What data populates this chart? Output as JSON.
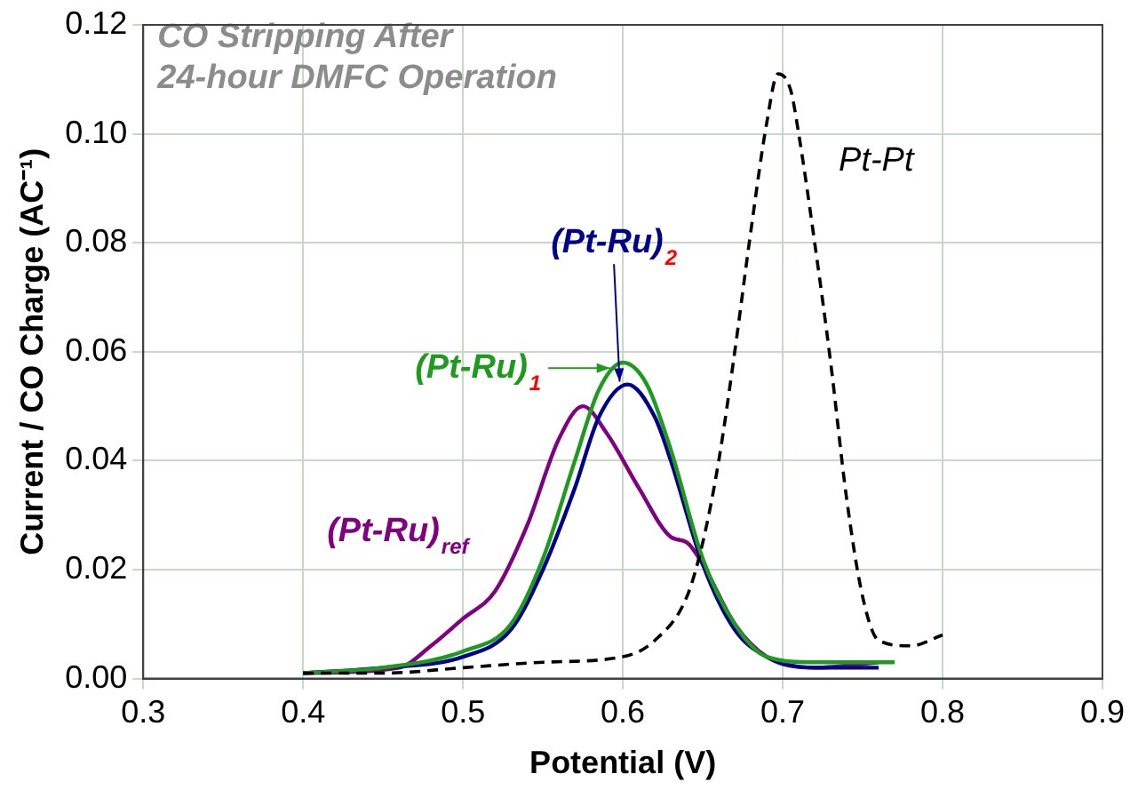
{
  "chart_data": {
    "type": "line",
    "title": "CO Stripping After 24-hour DMFC Operation",
    "xlabel": "Potential (V)",
    "ylabel": "Current / CO Charge (AC⁻¹)",
    "xlim": [
      0.3,
      0.9
    ],
    "xticks": [
      0.3,
      0.4,
      0.5,
      0.6,
      0.7,
      0.8,
      0.9
    ],
    "ylim": [
      0,
      0.12
    ],
    "yticks": [
      {
        "value": 0,
        "label": "0.00"
      },
      {
        "value": 0.02,
        "label": "0.02"
      },
      {
        "value": 0.04,
        "label": "0.04"
      },
      {
        "value": 0.06,
        "label": "0.06"
      },
      {
        "value": 0.08,
        "label": "0.08"
      },
      {
        "value": 0.1,
        "label": "0.10"
      },
      {
        "value": 0.12,
        "label": "0.12"
      }
    ],
    "grid": true,
    "marker": "none",
    "series": [
      {
        "name": "Pt-Pt",
        "color": "#000000",
        "line_style": "dashed",
        "x": [
          0.4,
          0.45,
          0.5,
          0.55,
          0.6,
          0.62,
          0.64,
          0.65,
          0.66,
          0.67,
          0.68,
          0.69,
          0.697,
          0.705,
          0.71,
          0.72,
          0.73,
          0.74,
          0.75,
          0.76,
          0.78,
          0.8
        ],
        "values": [
          0.001,
          0.001,
          0.002,
          0.003,
          0.004,
          0.007,
          0.015,
          0.025,
          0.04,
          0.06,
          0.082,
          0.102,
          0.111,
          0.108,
          0.1,
          0.08,
          0.058,
          0.033,
          0.015,
          0.007,
          0.006,
          0.008
        ]
      },
      {
        "name": "(Pt-Ru)$_{1}$",
        "color": "#1e9a1e",
        "line_style": "solid",
        "x": [
          0.4,
          0.45,
          0.5,
          0.53,
          0.55,
          0.57,
          0.585,
          0.6,
          0.615,
          0.63,
          0.65,
          0.67,
          0.69,
          0.72,
          0.77
        ],
        "values": [
          0.001,
          0.002,
          0.005,
          0.01,
          0.022,
          0.04,
          0.053,
          0.058,
          0.054,
          0.042,
          0.022,
          0.01,
          0.004,
          0.003,
          0.003
        ]
      },
      {
        "name": "(Pt-Ru)$_{2}$",
        "color": "#00008b",
        "line_style": "solid",
        "x": [
          0.4,
          0.45,
          0.5,
          0.53,
          0.55,
          0.57,
          0.585,
          0.603,
          0.62,
          0.63,
          0.65,
          0.67,
          0.69,
          0.72,
          0.76
        ],
        "values": [
          0.001,
          0.002,
          0.004,
          0.009,
          0.02,
          0.035,
          0.048,
          0.054,
          0.048,
          0.04,
          0.021,
          0.009,
          0.004,
          0.002,
          0.002
        ]
      },
      {
        "name": "(Pt-Ru)$_{ref}$",
        "color": "#800080",
        "line_style": "solid",
        "x": [
          0.4,
          0.46,
          0.48,
          0.5,
          0.52,
          0.54,
          0.56,
          0.575,
          0.59,
          0.61,
          0.63,
          0.64,
          0.65,
          0.67,
          0.69,
          0.72,
          0.76
        ],
        "values": [
          0.001,
          0.002,
          0.006,
          0.011,
          0.016,
          0.028,
          0.044,
          0.05,
          0.045,
          0.035,
          0.026,
          0.025,
          0.021,
          0.01,
          0.004,
          0.002,
          0.003
        ]
      }
    ]
  }
}
